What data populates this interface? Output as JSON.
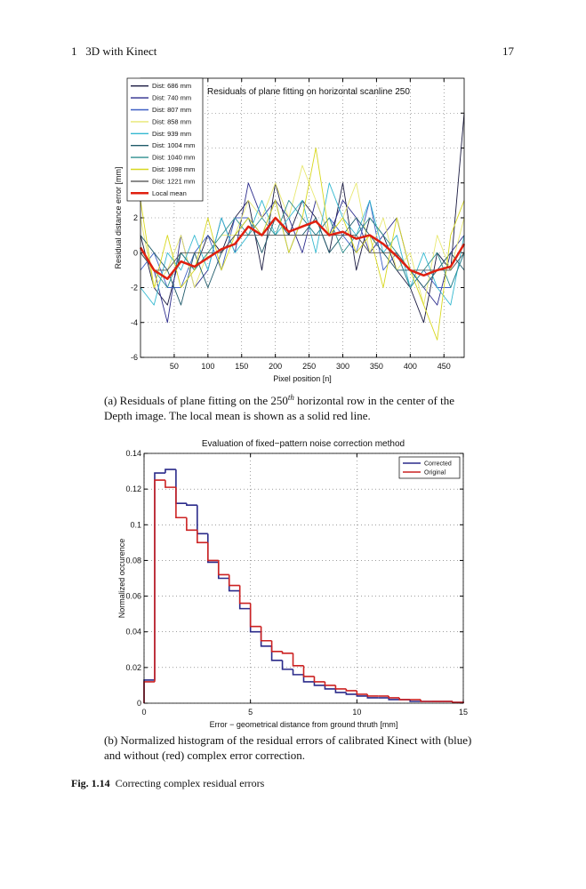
{
  "header": {
    "chapter": "1   3D with Kinect",
    "page": "17"
  },
  "chart_data": [
    {
      "type": "line",
      "title": "Residuals of plane fitting on horizontal scanline 250",
      "xlabel": "Pixel position [n]",
      "ylabel": "Residual distance error [mm]",
      "x": [
        0,
        20,
        40,
        60,
        80,
        100,
        120,
        140,
        160,
        180,
        200,
        220,
        240,
        260,
        280,
        300,
        320,
        340,
        360,
        380,
        400,
        420,
        440,
        460,
        480
      ],
      "series": [
        {
          "name": "Dist: 686 mm",
          "color": "#1a1a40",
          "values": [
            1,
            -2,
            -3,
            0,
            -1,
            1,
            0,
            2,
            3,
            -1,
            4,
            1,
            3,
            2,
            0,
            4,
            -1,
            2,
            1,
            -1,
            -2,
            -4,
            0,
            -1,
            8
          ]
        },
        {
          "name": "Dist: 740 mm",
          "color": "#2b2b8c",
          "values": [
            0,
            -1,
            -4,
            1,
            -2,
            -1,
            2,
            0,
            4,
            2,
            3,
            2,
            0,
            3,
            1,
            3,
            2,
            0,
            1,
            2,
            -1,
            -2,
            -3,
            0,
            1
          ]
        },
        {
          "name": "Dist: 807 mm",
          "color": "#3d5fc4",
          "values": [
            -1,
            0,
            -2,
            -2,
            0,
            1,
            -1,
            2,
            2,
            1,
            3,
            0,
            2,
            1,
            2,
            1,
            0,
            3,
            -1,
            0,
            -2,
            -1,
            -2,
            -2,
            0
          ]
        },
        {
          "name": "Dist: 858 mm",
          "color": "#e8e870",
          "values": [
            2,
            -2,
            -1,
            1,
            -2,
            0,
            1,
            1,
            3,
            2,
            4,
            2,
            5,
            3,
            1,
            2,
            4,
            0,
            2,
            -1,
            0,
            -3,
            1,
            -1,
            2
          ]
        },
        {
          "name": "Dist: 939 mm",
          "color": "#33b8d0",
          "values": [
            -2,
            -3,
            0,
            -1,
            1,
            -1,
            2,
            0,
            1,
            3,
            1,
            2,
            3,
            0,
            4,
            2,
            1,
            3,
            0,
            1,
            -2,
            0,
            -2,
            -3,
            1
          ]
        },
        {
          "name": "Dist: 1004 mm",
          "color": "#1f5a6a",
          "values": [
            1,
            0,
            -1,
            -3,
            0,
            -2,
            0,
            1,
            2,
            0,
            2,
            1,
            1,
            2,
            0,
            1,
            2,
            1,
            0,
            -1,
            -1,
            -2,
            -1,
            0,
            -1
          ]
        },
        {
          "name": "Dist: 1040 mm",
          "color": "#2f8f8f",
          "values": [
            0,
            -1,
            -2,
            0,
            -1,
            0,
            1,
            2,
            1,
            2,
            1,
            3,
            2,
            1,
            2,
            0,
            1,
            2,
            1,
            0,
            -2,
            -1,
            0,
            -2,
            0
          ]
        },
        {
          "name": "Dist: 1098 mm",
          "color": "#d8d820",
          "values": [
            3,
            -2,
            1,
            -2,
            -1,
            2,
            -1,
            1,
            2,
            1,
            3,
            0,
            2,
            6,
            1,
            2,
            0,
            1,
            -2,
            2,
            -1,
            -3,
            -5,
            1,
            3
          ]
        },
        {
          "name": "Dist: 1221 mm",
          "color": "#555555",
          "values": [
            0,
            -1,
            -1,
            0,
            0,
            0,
            0,
            1,
            1,
            1,
            1,
            1,
            1,
            1,
            1,
            1,
            1,
            0,
            0,
            0,
            -1,
            -1,
            -1,
            -1,
            0
          ]
        },
        {
          "name": "Local mean",
          "color": "#e02010",
          "linewidth": 2.5,
          "values": [
            0.3,
            -1.0,
            -1.5,
            -0.5,
            -0.8,
            -0.3,
            0.2,
            0.5,
            1.5,
            1.0,
            2.0,
            1.2,
            1.5,
            1.8,
            1.0,
            1.2,
            0.8,
            1.0,
            0.5,
            -0.2,
            -1.0,
            -1.3,
            -1.0,
            -0.8,
            0.5
          ]
        }
      ],
      "xlim": [
        0,
        480
      ],
      "ylim": [
        -6,
        10
      ],
      "xticks": [
        50,
        100,
        150,
        200,
        250,
        300,
        350,
        400,
        450
      ],
      "yticks": [
        -6,
        -4,
        -2,
        0,
        2,
        4,
        6,
        8
      ],
      "grid": true,
      "legend": "upper left"
    },
    {
      "type": "histogram",
      "title": "Evaluation of fixed−pattern noise correction method",
      "xlabel": "Error − geometrical distance from ground thruth [mm]",
      "ylabel": "Normalized occurence",
      "bins": [
        0,
        0.5,
        1,
        1.5,
        2,
        2.5,
        3,
        3.5,
        4,
        4.5,
        5,
        5.5,
        6,
        6.5,
        7,
        7.5,
        8,
        8.5,
        9,
        9.5,
        10,
        10.5,
        11,
        11.5,
        12,
        12.5,
        13,
        13.5,
        14,
        14.5,
        15
      ],
      "series": [
        {
          "name": "Corrected",
          "color": "#2a2a8a",
          "values": [
            0.013,
            0.129,
            0.131,
            0.112,
            0.111,
            0.095,
            0.079,
            0.07,
            0.063,
            0.053,
            0.04,
            0.032,
            0.024,
            0.019,
            0.016,
            0.012,
            0.01,
            0.008,
            0.006,
            0.005,
            0.004,
            0.003,
            0.003,
            0.002,
            0.002,
            0.001,
            0.001,
            0.001,
            0.001,
            0.0005
          ]
        },
        {
          "name": "Original",
          "color": "#cc2222",
          "values": [
            0.012,
            0.125,
            0.121,
            0.104,
            0.097,
            0.09,
            0.08,
            0.072,
            0.066,
            0.056,
            0.043,
            0.035,
            0.029,
            0.028,
            0.021,
            0.015,
            0.012,
            0.01,
            0.008,
            0.007,
            0.005,
            0.004,
            0.004,
            0.003,
            0.002,
            0.002,
            0.001,
            0.001,
            0.001,
            0.0005
          ]
        }
      ],
      "xlim": [
        0,
        15
      ],
      "ylim": [
        0,
        0.14
      ],
      "xticks": [
        0,
        5,
        10,
        15
      ],
      "yticks": [
        0,
        0.02,
        0.04,
        0.06,
        0.08,
        0.1,
        0.12,
        0.14
      ],
      "grid": true,
      "legend": "upper right"
    }
  ],
  "caption_a": {
    "before": "(a) Residuals of plane fitting on the 250",
    "sup": "th",
    "after": " horizontal row in the center of the",
    "line2": "Depth image. The local mean is shown as a solid red line."
  },
  "caption_b": {
    "line1": "(b) Normalized histogram of the residual errors of calibrated Kinect with (blue)",
    "line2": "and without (red) complex error correction."
  },
  "figure_caption": {
    "label": "Fig. 1.14",
    "text": "Correcting complex residual errors"
  }
}
